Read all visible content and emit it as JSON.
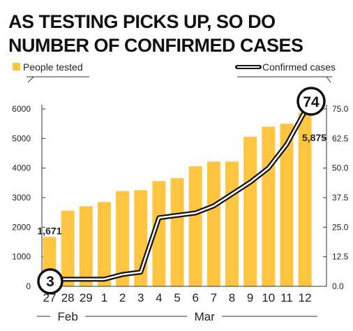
{
  "title_lines": [
    "AS TESTING PICKS UP, SO DO",
    "NUMBER OF CONFIRMED CASES"
  ],
  "colors": {
    "bar": "#FFC541",
    "line_outer": "#111111",
    "line_inner": "#ffffff",
    "text": "#111111"
  },
  "chart_data": {
    "type": "bar",
    "categories": [
      "27",
      "28",
      "29",
      "1",
      "2",
      "3",
      "4",
      "5",
      "6",
      "7",
      "8",
      "9",
      "10",
      "11",
      "12"
    ],
    "months": [
      {
        "label": "Feb",
        "from": 0,
        "to": 2
      },
      {
        "label": "Mar",
        "from": 3,
        "to": 14
      }
    ],
    "series": [
      {
        "name": "People tested",
        "type": "bar",
        "axis": "left",
        "values": [
          1671,
          2560,
          2710,
          2850,
          3220,
          3250,
          3560,
          3660,
          4060,
          4220,
          4220,
          5060,
          5400,
          5500,
          5875
        ]
      },
      {
        "name": "Confirmed cases",
        "type": "line",
        "axis": "right",
        "values": [
          3,
          3,
          3,
          3,
          5,
          6,
          29,
          30,
          31,
          34,
          39,
          44,
          50,
          60,
          74
        ]
      }
    ],
    "left_axis": {
      "min": 0,
      "max": 6000,
      "ticks": [
        "0",
        "1000",
        "2000",
        "3000",
        "4000",
        "5000",
        "6000"
      ]
    },
    "right_axis": {
      "min": 0,
      "max": 75,
      "ticks": [
        "0.0",
        "12.5",
        "25.0",
        "37.5",
        "50.0",
        "62.5",
        "75.0"
      ]
    },
    "annotations": {
      "first_bar_label": "1,671",
      "last_bar_label": "5,875",
      "first_case_bubble": "3",
      "last_case_bubble": "74"
    },
    "legend": {
      "bars": "People tested",
      "line": "Confirmed cases"
    },
    "grid": false
  }
}
